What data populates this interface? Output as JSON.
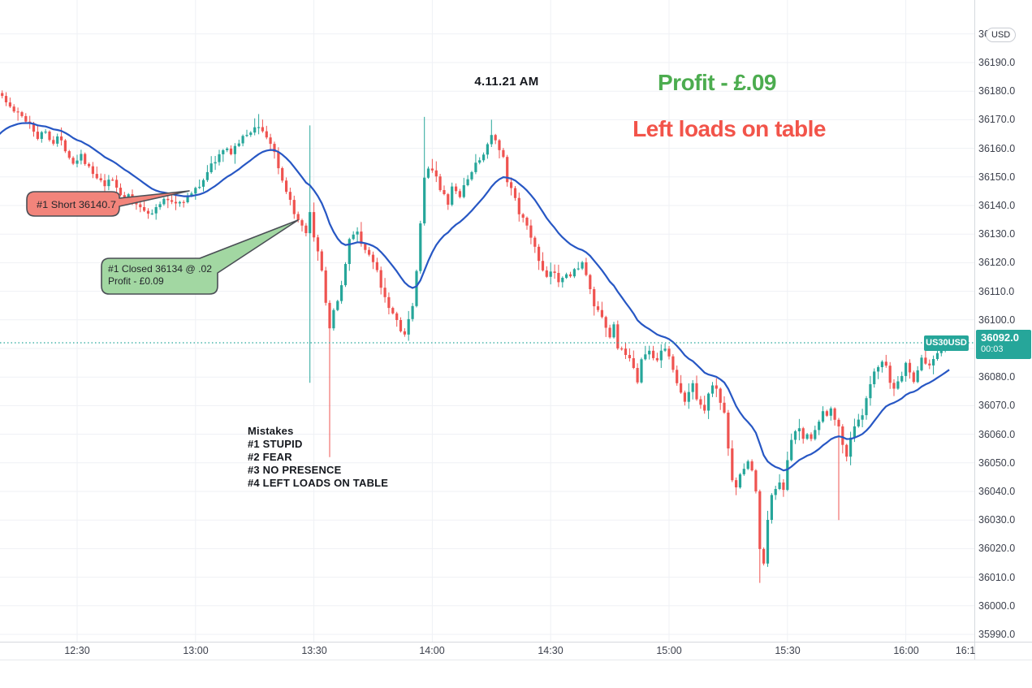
{
  "symbol_badge": "US30USD",
  "price_badge": {
    "price": "36092.0",
    "countdown": "00:03"
  },
  "axis_top_label": {
    "button": "USD"
  },
  "annotations": {
    "timestamp": "4.11.21 AM",
    "profit_note": "Profit - £.09",
    "warning_note": "Left loads on table",
    "mistakes": [
      "Mistakes",
      "#1  STUPID",
      "#2 FEAR",
      "#3 NO PRESENCE",
      "#4 LEFT LOADS ON TABLE"
    ],
    "short_callout": "#1 Short 36140.7",
    "closed_callout_line1": "#1 Closed 36134 @ .02",
    "closed_callout_line2": "Profit - £0.09"
  },
  "chart_data": {
    "type": "candlestick",
    "symbol": "US30USD",
    "interval": "1 minute",
    "last_price": 36092.0,
    "countdown": "00:03",
    "legend_position": "none",
    "grid": true,
    "price_axis": {
      "min": 35985,
      "max": 36206,
      "tick_step": 10,
      "tick_values": [
        36200,
        36190,
        36180,
        36170,
        36160,
        36150,
        36140,
        36130,
        36120,
        36110,
        36100,
        36090,
        36080,
        36070,
        36060,
        36050,
        36040,
        36030,
        36020,
        36010,
        36000,
        35990
      ]
    },
    "time_axis": {
      "ticks": [
        {
          "m": 750,
          "label": "12:30"
        },
        {
          "m": 780,
          "label": "13:00"
        },
        {
          "m": 810,
          "label": "13:30"
        },
        {
          "m": 840,
          "label": "14:00"
        },
        {
          "m": 870,
          "label": "14:30"
        },
        {
          "m": 900,
          "label": "15:00"
        },
        {
          "m": 930,
          "label": "15:30"
        },
        {
          "m": 960,
          "label": "16:00"
        },
        {
          "m": 975,
          "label": "16:1",
          "grid": false
        }
      ]
    },
    "moving_average": {
      "kind": "EMA",
      "period": 20
    },
    "colors": {
      "up": "#26a69a",
      "down": "#ef5350",
      "ma": "#2757c4",
      "grid": "#eff1f5",
      "price_line": "#26a69a",
      "badge": "#26a69a",
      "axis_text": "#3d414d",
      "callout_red": "#f2847b",
      "callout_green": "#a2d7a2",
      "callout_stroke": "#4a4e55",
      "profit_text": "#4cac4f",
      "warning_text": "#f2544a"
    },
    "series_keypoints": [
      [
        730,
        36180
      ],
      [
        732,
        36176
      ],
      [
        734,
        36173
      ],
      [
        736,
        36171
      ],
      [
        738,
        36169
      ],
      [
        740,
        36164
      ],
      [
        742,
        36166
      ],
      [
        744,
        36162
      ],
      [
        745,
        36164
      ],
      [
        747,
        36160
      ],
      [
        749,
        36155
      ],
      [
        751,
        36158
      ],
      [
        753,
        36153
      ],
      [
        755,
        36149
      ],
      [
        757,
        36147
      ],
      [
        759,
        36149
      ],
      [
        761,
        36144
      ],
      [
        763,
        36143
      ],
      [
        765,
        36140
      ],
      [
        767,
        36139
      ],
      [
        769,
        36137
      ],
      [
        771,
        36141
      ],
      [
        773,
        36142
      ],
      [
        775,
        36141
      ],
      [
        777,
        36142
      ],
      [
        779,
        36144
      ],
      [
        781,
        36147
      ],
      [
        783,
        36152
      ],
      [
        785,
        36156
      ],
      [
        787,
        36159
      ],
      [
        789,
        36159
      ],
      [
        791,
        36162
      ],
      [
        793,
        36165
      ],
      [
        795,
        36167
      ],
      [
        796,
        36168
      ],
      [
        798,
        36164
      ],
      [
        800,
        36159
      ],
      [
        801,
        36152
      ],
      [
        803,
        36144
      ],
      [
        805,
        36138
      ],
      [
        806,
        36134
      ],
      [
        808,
        36130
      ],
      [
        809,
        36137
      ],
      [
        810,
        36128
      ],
      [
        812,
        36118
      ],
      [
        813,
        36106
      ],
      [
        814,
        36096
      ],
      [
        815,
        36103
      ],
      [
        817,
        36112
      ],
      [
        818,
        36120
      ],
      [
        819,
        36128
      ],
      [
        821,
        36131
      ],
      [
        822,
        36127
      ],
      [
        824,
        36122
      ],
      [
        826,
        36118
      ],
      [
        827,
        36112
      ],
      [
        829,
        36105
      ],
      [
        831,
        36100
      ],
      [
        832,
        36097
      ],
      [
        833,
        36095
      ],
      [
        835,
        36104
      ],
      [
        836,
        36117
      ],
      [
        837,
        36133
      ],
      [
        838,
        36149
      ],
      [
        839,
        36154
      ],
      [
        841,
        36151
      ],
      [
        842,
        36145
      ],
      [
        844,
        36141
      ],
      [
        845,
        36146
      ],
      [
        847,
        36143
      ],
      [
        848,
        36147
      ],
      [
        850,
        36152
      ],
      [
        852,
        36156
      ],
      [
        854,
        36161
      ],
      [
        855,
        36165
      ],
      [
        856,
        36162
      ],
      [
        858,
        36156
      ],
      [
        859,
        36148
      ],
      [
        861,
        36143
      ],
      [
        862,
        36138
      ],
      [
        864,
        36132
      ],
      [
        866,
        36126
      ],
      [
        867,
        36120
      ],
      [
        869,
        36114
      ],
      [
        870,
        36117
      ],
      [
        872,
        36114
      ],
      [
        874,
        36117
      ],
      [
        875,
        36115
      ],
      [
        877,
        36119
      ],
      [
        878,
        36120
      ],
      [
        880,
        36110
      ],
      [
        881,
        36105
      ],
      [
        883,
        36100
      ],
      [
        885,
        36094
      ],
      [
        886,
        36098
      ],
      [
        887,
        36091
      ],
      [
        889,
        36087
      ],
      [
        891,
        36084
      ],
      [
        892,
        36079
      ],
      [
        893,
        36086
      ],
      [
        895,
        36089
      ],
      [
        897,
        36086
      ],
      [
        898,
        36090
      ],
      [
        900,
        36088
      ],
      [
        901,
        36082
      ],
      [
        903,
        36074
      ],
      [
        904,
        36071
      ],
      [
        906,
        36078
      ],
      [
        907,
        36073
      ],
      [
        909,
        36069
      ],
      [
        911,
        36078
      ],
      [
        912,
        36075
      ],
      [
        914,
        36068
      ],
      [
        915,
        36054
      ],
      [
        916,
        36045
      ],
      [
        917,
        36042
      ],
      [
        919,
        36048
      ],
      [
        920,
        36051
      ],
      [
        921,
        36047
      ],
      [
        922,
        36040
      ],
      [
        923,
        36020
      ],
      [
        924,
        36014
      ],
      [
        925,
        36031
      ],
      [
        926,
        36038
      ],
      [
        928,
        36044
      ],
      [
        929,
        36041
      ],
      [
        930,
        36050
      ],
      [
        931,
        36058
      ],
      [
        933,
        36062
      ],
      [
        934,
        36058
      ],
      [
        935,
        36061
      ],
      [
        936,
        36059
      ],
      [
        938,
        36064
      ],
      [
        939,
        36068
      ],
      [
        940,
        36066
      ],
      [
        941,
        36070
      ],
      [
        943,
        36062
      ],
      [
        944,
        36056
      ],
      [
        945,
        36053
      ],
      [
        946,
        36059
      ],
      [
        947,
        36063
      ],
      [
        949,
        36066
      ],
      [
        950,
        36072
      ],
      [
        951,
        36077
      ],
      [
        952,
        36081
      ],
      [
        954,
        36085
      ],
      [
        955,
        36083
      ],
      [
        956,
        36078
      ],
      [
        957,
        36076
      ],
      [
        959,
        36081
      ],
      [
        960,
        36085
      ],
      [
        961,
        36081
      ],
      [
        962,
        36079
      ],
      [
        963,
        36083
      ],
      [
        964,
        36086
      ],
      [
        966,
        36084
      ],
      [
        967,
        36087
      ],
      [
        968,
        36089
      ],
      [
        969,
        36090
      ],
      [
        971,
        36092
      ]
    ],
    "special_candles": [
      {
        "m": 796,
        "high": 36172
      },
      {
        "m": 809,
        "high": 36168,
        "low": 36078
      },
      {
        "m": 814,
        "low": 36052
      },
      {
        "m": 838,
        "high": 36171
      },
      {
        "m": 855,
        "high": 36170
      },
      {
        "m": 923,
        "low": 36008
      },
      {
        "m": 943,
        "low": 36030
      }
    ],
    "trade_annotations": [
      {
        "kind": "short_entry",
        "price": 36140.7,
        "label": "#1 Short 36140.7"
      },
      {
        "kind": "close",
        "price": 36134,
        "label": "#1 Closed 36134 @ .02 Profit - £0.09"
      }
    ]
  }
}
